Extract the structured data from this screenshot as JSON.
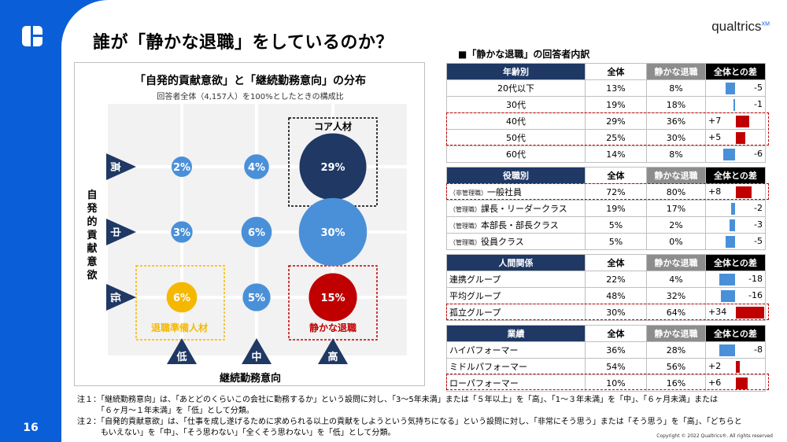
{
  "page": {
    "number": "16",
    "title": "誰が「静かな退職」をしているのか？",
    "brand": "qualtrics",
    "brand_mark": "XM"
  },
  "chart": {
    "title": "「自発的貢献意欲」と「継続勤務意向」の分布",
    "subtitle": "回答者全体（4,157人）を100%としたときの構成比",
    "ylabel": "自発的貢献意欲",
    "xlabel": "継続勤務意向",
    "y_levels": [
      "高",
      "中",
      "低"
    ],
    "x_levels": [
      "低",
      "中",
      "高"
    ],
    "cells": [
      {
        "value": "2%",
        "pct": 2,
        "color": "#4a90d9"
      },
      {
        "value": "4%",
        "pct": 4,
        "color": "#4a90d9"
      },
      {
        "value": "29%",
        "pct": 29,
        "color": "#1f3864"
      },
      {
        "value": "3%",
        "pct": 3,
        "color": "#4a90d9"
      },
      {
        "value": "6%",
        "pct": 6,
        "color": "#4a90d9"
      },
      {
        "value": "30%",
        "pct": 30,
        "color": "#4a90d9"
      },
      {
        "value": "6%",
        "pct": 6,
        "color": "#f5b800"
      },
      {
        "value": "5%",
        "pct": 5,
        "color": "#4a90d9"
      },
      {
        "value": "15%",
        "pct": 15,
        "color": "#c00000"
      }
    ],
    "tags": {
      "core": "コア人材",
      "retire": "退職準備人材",
      "quiet": "静かな退職"
    }
  },
  "breakdown": {
    "title": "■「静かな退職」の回答者内訳",
    "col_all": "全体",
    "col_quiet": "静かな退職",
    "col_diff": "全体との差",
    "sections": [
      {
        "header": "年齢別",
        "rows": [
          {
            "label": "20代以下",
            "prefix": "",
            "all": "13%",
            "quiet": "8%",
            "diff": "-5",
            "d": -5
          },
          {
            "label": "30代",
            "prefix": "",
            "all": "19%",
            "quiet": "18%",
            "diff": "-1",
            "d": -1
          },
          {
            "label": "40代",
            "prefix": "",
            "all": "29%",
            "quiet": "36%",
            "diff": "+7",
            "d": 7
          },
          {
            "label": "50代",
            "prefix": "",
            "all": "25%",
            "quiet": "30%",
            "diff": "+5",
            "d": 5
          },
          {
            "label": "60代",
            "prefix": "",
            "all": "14%",
            "quiet": "8%",
            "diff": "-6",
            "d": -6
          }
        ]
      },
      {
        "header": "役職別",
        "rows": [
          {
            "label": "一般社員",
            "prefix": "（非管理職）",
            "all": "72%",
            "quiet": "80%",
            "diff": "+8",
            "d": 8
          },
          {
            "label": "課長・リーダークラス",
            "prefix": "（管理職）",
            "all": "19%",
            "quiet": "17%",
            "diff": "-2",
            "d": -2
          },
          {
            "label": "本部長・部長クラス",
            "prefix": "（管理職）",
            "all": "5%",
            "quiet": "2%",
            "diff": "-3",
            "d": -3
          },
          {
            "label": "役員クラス",
            "prefix": "（管理職）",
            "all": "5%",
            "quiet": "0%",
            "diff": "-5",
            "d": -5
          }
        ]
      },
      {
        "header": "人間関係",
        "rows": [
          {
            "label": "連携グループ",
            "prefix": "",
            "all": "22%",
            "quiet": "4%",
            "diff": "-18",
            "d": -18
          },
          {
            "label": "平均グループ",
            "prefix": "",
            "all": "48%",
            "quiet": "32%",
            "diff": "-16",
            "d": -16
          },
          {
            "label": "孤立グループ",
            "prefix": "",
            "all": "30%",
            "quiet": "64%",
            "diff": "+34",
            "d": 34
          }
        ]
      },
      {
        "header": "業績",
        "rows": [
          {
            "label": "ハイパフォーマー",
            "prefix": "",
            "all": "36%",
            "quiet": "28%",
            "diff": "-8",
            "d": -8
          },
          {
            "label": "ミドルパフォーマー",
            "prefix": "",
            "all": "54%",
            "quiet": "56%",
            "diff": "+2",
            "d": 2
          },
          {
            "label": "ローパフォーマー",
            "prefix": "",
            "all": "10%",
            "quiet": "16%",
            "diff": "+6",
            "d": 6
          }
        ]
      }
    ]
  },
  "notes": [
    "注１：「継続勤務意向」は、「あとどのくらいこの会社に勤務するか」という設問に対し、「3～5年未満」または「５年以上」を「高」、「1～３年未満」を「中」、「６ヶ月未満」または",
    "　　　「６ヶ月～１年未満」を「低」として分類。",
    "注２：「自発的貢献意欲」は、「仕事を成し遂げるために求められる以上の貢献をしようという気持ちになる」という設問に対し、「非常にそう思う」または「そう思う」を「高」、「どちらと",
    "　　　もいえない」を「中」、「そう思わない」「全くそう思わない」を「低」として分類。"
  ],
  "copyright": "Copyright © 2022 Qualtrics®. All rights reserved",
  "colors": {
    "accent": "#0a5fd8",
    "navy": "#1f3864",
    "red": "#c00000",
    "blue": "#4a90d9",
    "yellow": "#f5b800"
  }
}
